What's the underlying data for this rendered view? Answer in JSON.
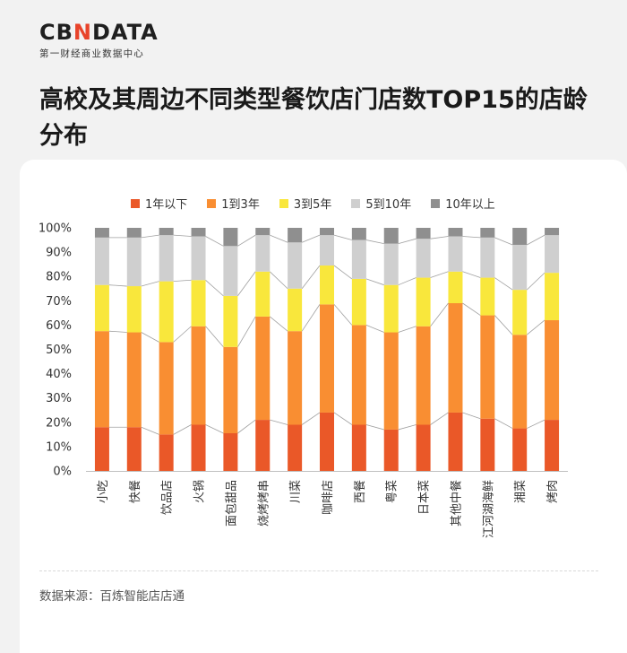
{
  "header": {
    "logo_prefix": "CB",
    "logo_accent": "N",
    "logo_suffix": "DATA",
    "logo_subtitle": "第一财经商业数据中心"
  },
  "title": "高校及其周边不同类型餐饮店门店数TOP15的店龄分布",
  "source": "数据来源：百炼智能店店通",
  "colors": {
    "background": "#f2f2f2",
    "card": "#ffffff",
    "accent": "#e8432a"
  },
  "chart_data": {
    "type": "bar",
    "stacked": true,
    "percent": true,
    "categories": [
      "小吃",
      "快餐",
      "饮品店",
      "火锅",
      "面包甜品",
      "烧烤烤串",
      "川菜",
      "咖啡店",
      "西餐",
      "粤菜",
      "日本菜",
      "其他中餐",
      "江河湖海鲜",
      "湘菜",
      "烤肉"
    ],
    "series": [
      {
        "name": "1年以下",
        "color": "#ea5828",
        "values": [
          18,
          18,
          15,
          19,
          15.5,
          21,
          19,
          24,
          19,
          17,
          19,
          24,
          21.5,
          17.5,
          21
        ]
      },
      {
        "name": "1到3年",
        "color": "#f98e32",
        "values": [
          39.5,
          39,
          38,
          40.5,
          35.5,
          42.5,
          38.5,
          44.5,
          41,
          40,
          40.5,
          45,
          42.5,
          38.5,
          41
        ]
      },
      {
        "name": "3到5年",
        "color": "#f9e73c",
        "values": [
          19,
          19,
          25,
          19,
          21,
          18.5,
          17.5,
          16,
          19,
          19.5,
          20,
          13,
          15.5,
          18.5,
          19.5
        ]
      },
      {
        "name": "5到10年",
        "color": "#cfcfcf",
        "values": [
          19.5,
          20,
          19,
          18,
          20.5,
          15,
          19,
          12.5,
          16,
          17,
          16,
          14.5,
          16.5,
          18.5,
          15.5
        ]
      },
      {
        "name": "10年以上",
        "color": "#8f8f8f",
        "values": [
          4,
          4,
          3,
          3.5,
          7.5,
          3,
          6,
          3,
          5,
          6.5,
          4.5,
          3.5,
          4,
          7,
          3
        ]
      }
    ],
    "ylim": [
      0,
      100
    ],
    "yticks": [
      "0%",
      "10%",
      "20%",
      "30%",
      "40%",
      "50%",
      "60%",
      "70%",
      "80%",
      "90%",
      "100%"
    ],
    "legend_position": "top",
    "grid": false
  }
}
